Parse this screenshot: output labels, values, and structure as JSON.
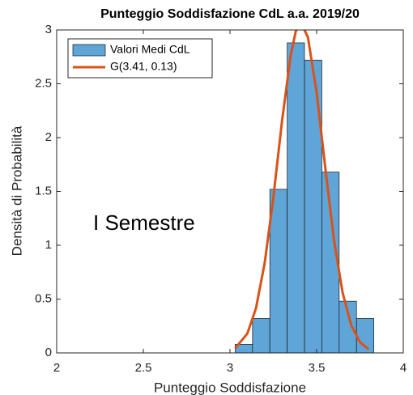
{
  "chart_data": {
    "type": "histogram",
    "title": "Punteggio Soddisfazione CdL a.a. 2019/20",
    "xlabel": "Punteggio Soddisfazione",
    "ylabel": "Densità di Probabilità",
    "annotation": "I Semestre",
    "name": "Valori Medi CdL",
    "color": "#5fa5d8",
    "bins": [
      3.03,
      3.13,
      3.23,
      3.33,
      3.43,
      3.53,
      3.63,
      3.73,
      3.83
    ],
    "counts": [
      0.08,
      0.32,
      1.52,
      2.88,
      2.72,
      1.68,
      0.48,
      0.32
    ],
    "curve": {
      "type": "line",
      "name": "G(3.41, 0.13)",
      "color": "#d95319",
      "x": [
        3.03,
        3.1,
        3.15,
        3.2,
        3.25,
        3.3,
        3.35,
        3.38,
        3.41,
        3.45,
        3.5,
        3.55,
        3.6,
        3.65,
        3.7,
        3.75,
        3.8
      ],
      "values": [
        0.043,
        0.179,
        0.415,
        0.832,
        1.44,
        2.15,
        2.76,
        2.99,
        3.07,
        2.93,
        2.42,
        1.72,
        1.05,
        0.559,
        0.255,
        0.1,
        0.034
      ]
    },
    "xlim": [
      2,
      4
    ],
    "ylim": [
      0,
      3
    ],
    "xticks": [
      2,
      2.5,
      3,
      3.5,
      4
    ],
    "yticks": [
      0,
      0.5,
      1,
      1.5,
      2,
      2.5,
      3
    ],
    "legend": "upper left"
  }
}
